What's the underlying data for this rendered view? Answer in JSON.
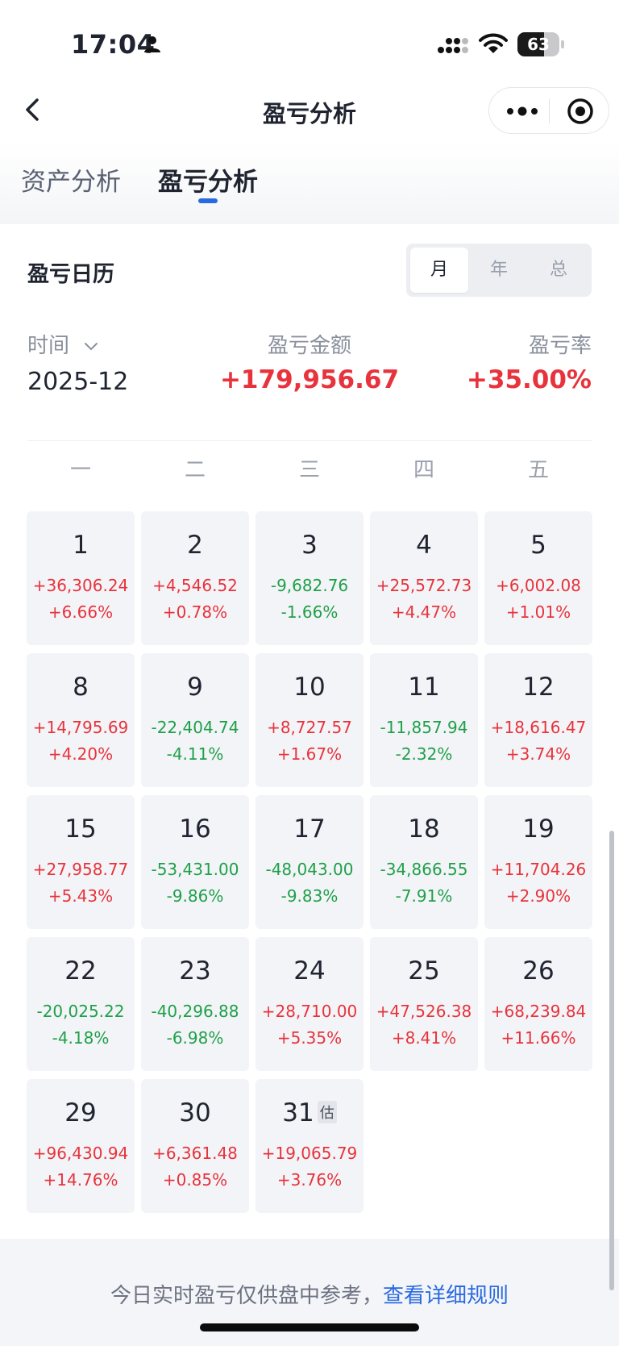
{
  "status_bar": {
    "time": "17:04",
    "battery_level": 63,
    "battery_text": "63"
  },
  "nav": {
    "title": "盈亏分析",
    "back_icon": "chevron-left-icon",
    "more_icon": "more-dots-icon",
    "close_icon": "target-close-icon"
  },
  "tabs": [
    {
      "label": "资产分析",
      "active": false
    },
    {
      "label": "盈亏分析",
      "active": true
    }
  ],
  "calendar": {
    "title": "盈亏日历",
    "period_options": [
      {
        "label": "月",
        "active": true
      },
      {
        "label": "年",
        "active": false
      },
      {
        "label": "总",
        "active": false
      }
    ],
    "header_labels": {
      "time": "时间",
      "amount": "盈亏金额",
      "rate": "盈亏率"
    },
    "selected_month": "2025-12",
    "total_amount": "+179,956.67",
    "total_rate": "+35.00%",
    "weekdays": [
      "一",
      "二",
      "三",
      "四",
      "五"
    ],
    "days": [
      {
        "day": "1",
        "amount": "+36,306.24",
        "rate": "+6.66%",
        "dir": "up"
      },
      {
        "day": "2",
        "amount": "+4,546.52",
        "rate": "+0.78%",
        "dir": "up"
      },
      {
        "day": "3",
        "amount": "-9,682.76",
        "rate": "-1.66%",
        "dir": "down"
      },
      {
        "day": "4",
        "amount": "+25,572.73",
        "rate": "+4.47%",
        "dir": "up"
      },
      {
        "day": "5",
        "amount": "+6,002.08",
        "rate": "+1.01%",
        "dir": "up"
      },
      {
        "day": "8",
        "amount": "+14,795.69",
        "rate": "+4.20%",
        "dir": "up"
      },
      {
        "day": "9",
        "amount": "-22,404.74",
        "rate": "-4.11%",
        "dir": "down"
      },
      {
        "day": "10",
        "amount": "+8,727.57",
        "rate": "+1.67%",
        "dir": "up"
      },
      {
        "day": "11",
        "amount": "-11,857.94",
        "rate": "-2.32%",
        "dir": "down"
      },
      {
        "day": "12",
        "amount": "+18,616.47",
        "rate": "+3.74%",
        "dir": "up"
      },
      {
        "day": "15",
        "amount": "+27,958.77",
        "rate": "+5.43%",
        "dir": "up"
      },
      {
        "day": "16",
        "amount": "-53,431.00",
        "rate": "-9.86%",
        "dir": "down"
      },
      {
        "day": "17",
        "amount": "-48,043.00",
        "rate": "-9.83%",
        "dir": "down"
      },
      {
        "day": "18",
        "amount": "-34,866.55",
        "rate": "-7.91%",
        "dir": "down"
      },
      {
        "day": "19",
        "amount": "+11,704.26",
        "rate": "+2.90%",
        "dir": "up"
      },
      {
        "day": "22",
        "amount": "-20,025.22",
        "rate": "-4.18%",
        "dir": "down"
      },
      {
        "day": "23",
        "amount": "-40,296.88",
        "rate": "-6.98%",
        "dir": "down"
      },
      {
        "day": "24",
        "amount": "+28,710.00",
        "rate": "+5.35%",
        "dir": "up"
      },
      {
        "day": "25",
        "amount": "+47,526.38",
        "rate": "+8.41%",
        "dir": "up"
      },
      {
        "day": "26",
        "amount": "+68,239.84",
        "rate": "+11.66%",
        "dir": "up"
      },
      {
        "day": "29",
        "amount": "+96,430.94",
        "rate": "+14.76%",
        "dir": "up"
      },
      {
        "day": "30",
        "amount": "+6,361.48",
        "rate": "+0.85%",
        "dir": "up"
      },
      {
        "day": "31",
        "amount": "+19,065.79",
        "rate": "+3.76%",
        "dir": "up",
        "badge": "估"
      }
    ]
  },
  "footer": {
    "note": "今日实时盈亏仅供盘中参考，",
    "link": "查看详细规则"
  },
  "colors": {
    "up": "#e8333c",
    "down": "#1fa04a",
    "accent": "#2a6ae0"
  }
}
